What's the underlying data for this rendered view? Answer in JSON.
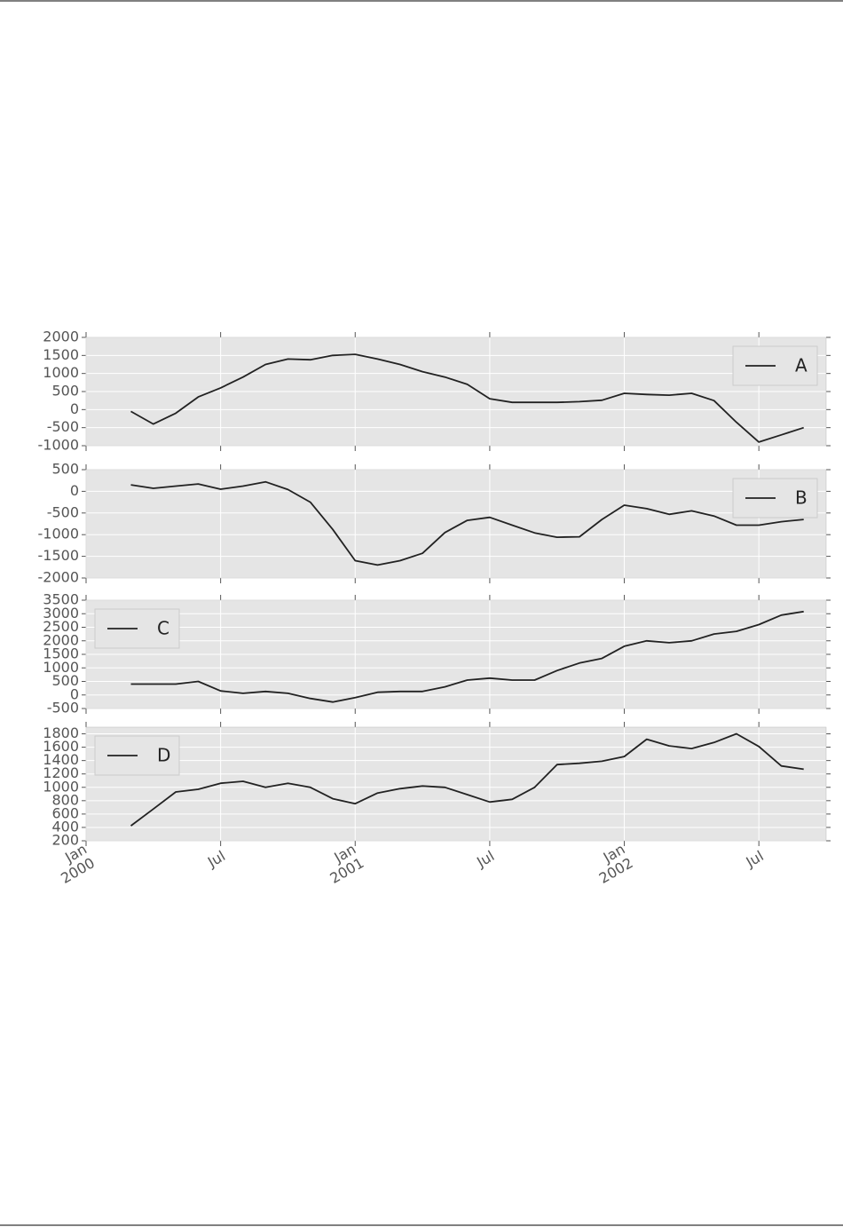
{
  "chart_data": [
    {
      "type": "line",
      "x": [
        "2000-03",
        "2000-04",
        "2000-05",
        "2000-06",
        "2000-07",
        "2000-08",
        "2000-09",
        "2000-10",
        "2000-11",
        "2000-12",
        "2001-01",
        "2001-02",
        "2001-03",
        "2001-04",
        "2001-05",
        "2001-06",
        "2001-07",
        "2001-08",
        "2001-09",
        "2001-10",
        "2001-11",
        "2001-12",
        "2002-01",
        "2002-02",
        "2002-03",
        "2002-04",
        "2002-05",
        "2002-06",
        "2002-07",
        "2002-08",
        "2002-09"
      ],
      "series": [
        {
          "name": "A",
          "color": "#222222",
          "values": [
            -50,
            -400,
            -100,
            350,
            600,
            900,
            1250,
            1400,
            1380,
            1500,
            1530,
            1400,
            1250,
            1050,
            900,
            700,
            300,
            200,
            200,
            200,
            220,
            260,
            450,
            420,
            400,
            450,
            250,
            -350,
            -900,
            -700,
            -500
          ]
        }
      ],
      "xlim": [
        "2000-01",
        "2002-10"
      ],
      "xticks": [
        "2000-01",
        "2000-07",
        "2001-01",
        "2001-07",
        "2002-01",
        "2002-07"
      ],
      "ylim": [
        -1000,
        2000
      ],
      "yticks": [
        -1000,
        -500,
        0,
        500,
        1000,
        1500,
        2000
      ],
      "grid": true,
      "legend": "upper right"
    },
    {
      "type": "line",
      "x": [
        "2000-03",
        "2000-04",
        "2000-05",
        "2000-06",
        "2000-07",
        "2000-08",
        "2000-09",
        "2000-10",
        "2000-11",
        "2000-12",
        "2001-01",
        "2001-02",
        "2001-03",
        "2001-04",
        "2001-05",
        "2001-06",
        "2001-07",
        "2001-08",
        "2001-09",
        "2001-10",
        "2001-11",
        "2001-12",
        "2002-01",
        "2002-02",
        "2002-03",
        "2002-04",
        "2002-05",
        "2002-06",
        "2002-07",
        "2002-08",
        "2002-09"
      ],
      "series": [
        {
          "name": "B",
          "color": "#222222",
          "values": [
            150,
            70,
            120,
            170,
            50,
            120,
            220,
            40,
            -250,
            -880,
            -1600,
            -1700,
            -1600,
            -1430,
            -950,
            -670,
            -600,
            -780,
            -960,
            -1060,
            -1050,
            -650,
            -320,
            -400,
            -530,
            -450,
            -570,
            -780,
            -780,
            -700,
            -650
          ]
        }
      ],
      "xlim": [
        "2000-01",
        "2002-10"
      ],
      "xticks": [
        "2000-01",
        "2000-07",
        "2001-01",
        "2001-07",
        "2002-01",
        "2002-07"
      ],
      "ylim": [
        -2000,
        500
      ],
      "yticks": [
        -2000,
        -1500,
        -1000,
        -500,
        0,
        500
      ],
      "grid": true,
      "legend": "upper right"
    },
    {
      "type": "line",
      "x": [
        "2000-03",
        "2000-04",
        "2000-05",
        "2000-06",
        "2000-07",
        "2000-08",
        "2000-09",
        "2000-10",
        "2000-11",
        "2000-12",
        "2001-01",
        "2001-02",
        "2001-03",
        "2001-04",
        "2001-05",
        "2001-06",
        "2001-07",
        "2001-08",
        "2001-09",
        "2001-10",
        "2001-11",
        "2001-12",
        "2002-01",
        "2002-02",
        "2002-03",
        "2002-04",
        "2002-05",
        "2002-06",
        "2002-07",
        "2002-08",
        "2002-09"
      ],
      "series": [
        {
          "name": "C",
          "color": "#222222",
          "values": [
            400,
            400,
            400,
            500,
            150,
            60,
            130,
            60,
            -130,
            -260,
            -100,
            100,
            130,
            130,
            300,
            550,
            620,
            550,
            550,
            900,
            1180,
            1350,
            1800,
            2000,
            1930,
            2000,
            2250,
            2350,
            2600,
            2950,
            3080
          ]
        }
      ],
      "xlim": [
        "2000-01",
        "2002-10"
      ],
      "xticks": [
        "2000-01",
        "2000-07",
        "2001-01",
        "2001-07",
        "2002-01",
        "2002-07"
      ],
      "ylim": [
        -500,
        3500
      ],
      "yticks": [
        -500,
        0,
        500,
        1000,
        1500,
        2000,
        2500,
        3000,
        3500
      ],
      "grid": true,
      "legend": "upper left"
    },
    {
      "type": "line",
      "x": [
        "2000-03",
        "2000-04",
        "2000-05",
        "2000-06",
        "2000-07",
        "2000-08",
        "2000-09",
        "2000-10",
        "2000-11",
        "2000-12",
        "2001-01",
        "2001-02",
        "2001-03",
        "2001-04",
        "2001-05",
        "2001-06",
        "2001-07",
        "2001-08",
        "2001-09",
        "2001-10",
        "2001-11",
        "2001-12",
        "2002-01",
        "2002-02",
        "2002-03",
        "2002-04",
        "2002-05",
        "2002-06",
        "2002-07",
        "2002-08",
        "2002-09"
      ],
      "series": [
        {
          "name": "D",
          "color": "#222222",
          "values": [
            425,
            675,
            930,
            970,
            1060,
            1090,
            1000,
            1060,
            1000,
            830,
            755,
            915,
            980,
            1020,
            1000,
            890,
            780,
            820,
            1000,
            1340,
            1360,
            1390,
            1460,
            1720,
            1620,
            1580,
            1670,
            1800,
            1610,
            1320,
            1270
          ]
        }
      ],
      "xlim": [
        "2000-01",
        "2002-10"
      ],
      "xticks": [
        {
          "value": "2000-01",
          "label": "Jan 2000"
        },
        {
          "value": "2000-07",
          "label": "Jul"
        },
        {
          "value": "2001-01",
          "label": "Jan 2001"
        },
        {
          "value": "2001-07",
          "label": "Jul"
        },
        {
          "value": "2002-01",
          "label": "Jan 2002"
        },
        {
          "value": "2002-07",
          "label": "Jul"
        }
      ],
      "ylim": [
        200,
        1900
      ],
      "yticks": [
        200,
        400,
        600,
        800,
        1000,
        1200,
        1400,
        1600,
        1800
      ],
      "grid": true,
      "legend": "upper left"
    }
  ]
}
